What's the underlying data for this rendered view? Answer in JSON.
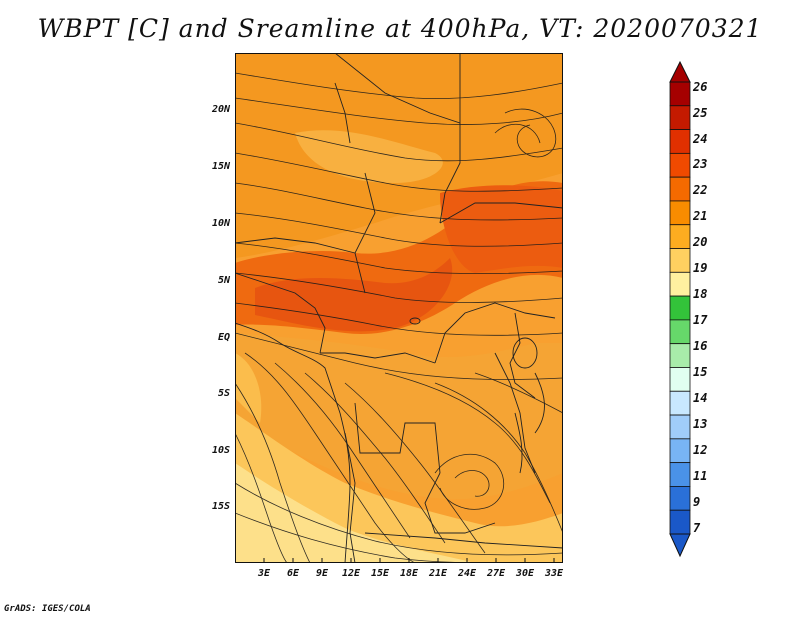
{
  "title": "WBPT [C] and Sreamline at 400hPa, VT: 2020070321",
  "footer": "GrADS: IGES/COLA",
  "map": {
    "lat_labels": [
      "20N",
      "15N",
      "10N",
      "5N",
      "EQ",
      "5S",
      "10S",
      "15S"
    ],
    "lon_labels": [
      "3E",
      "6E",
      "9E",
      "12E",
      "15E",
      "18E",
      "21E",
      "24E",
      "27E",
      "30E",
      "33E"
    ],
    "lat_range": [
      -20,
      24
    ],
    "lon_range": [
      0,
      34
    ]
  },
  "colorbar": {
    "labels": [
      "26",
      "25",
      "24",
      "23",
      "22",
      "21",
      "20",
      "19",
      "18",
      "17",
      "16",
      "15",
      "14",
      "13",
      "12",
      "11",
      "9",
      "7"
    ],
    "colors": [
      "#a50000",
      "#c41a00",
      "#e03000",
      "#f04a00",
      "#f46a00",
      "#f88c00",
      "#fcac20",
      "#ffd060",
      "#fff0a0",
      "#33c33a",
      "#66d86a",
      "#a8ecaa",
      "#e0fff0",
      "#c8e8ff",
      "#a0cdfa",
      "#78b4f4",
      "#4a92e8",
      "#2a70d8",
      "#1a58c8"
    ]
  }
}
